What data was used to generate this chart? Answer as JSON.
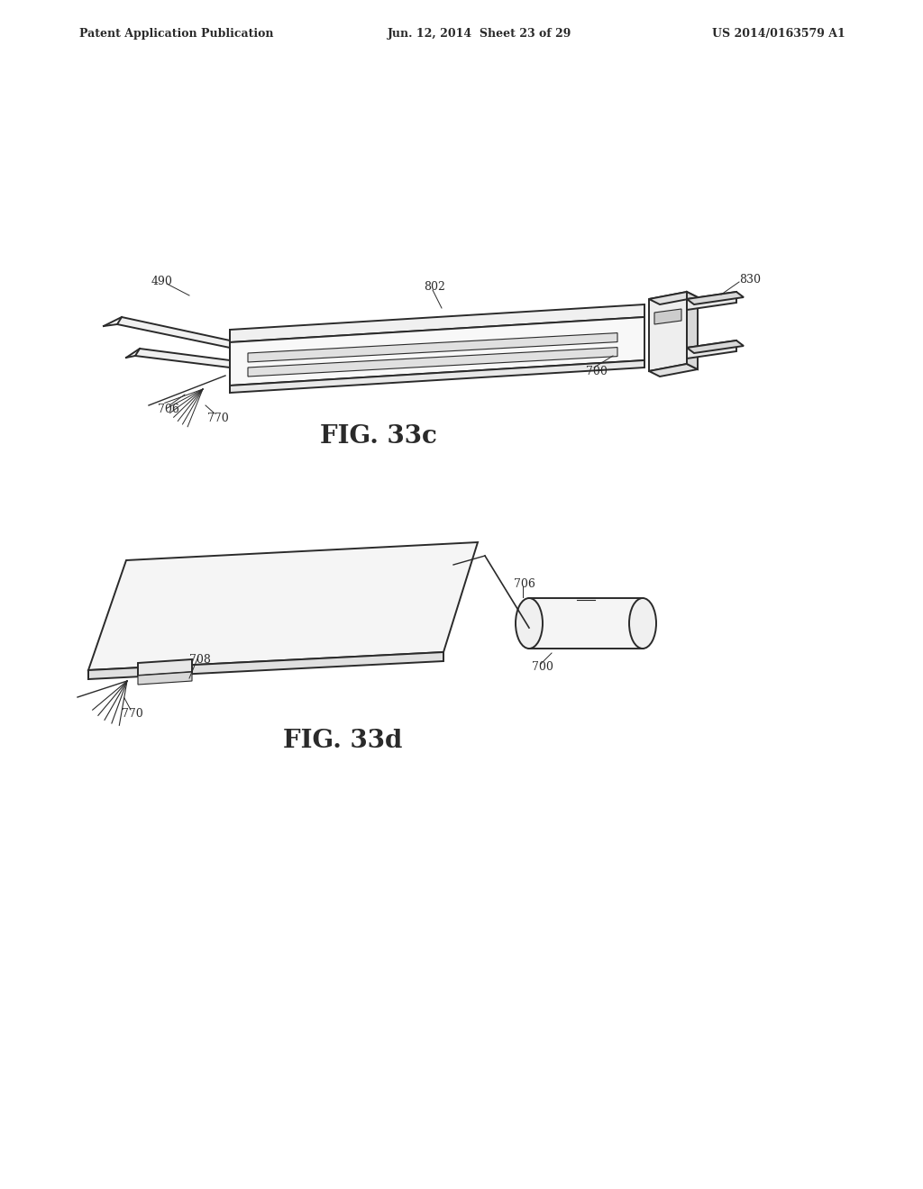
{
  "background_color": "#ffffff",
  "header_left": "Patent Application Publication",
  "header_center": "Jun. 12, 2014  Sheet 23 of 29",
  "header_right": "US 2014/0163579 A1",
  "fig33c_label": "FIG. 33c",
  "fig33d_label": "FIG. 33d",
  "line_color": "#2a2a2a",
  "lw_main": 1.4,
  "lw_thin": 0.8,
  "lw_label": 0.7,
  "fontsize_label": 9,
  "fontsize_caption": 20,
  "fontsize_header": 9
}
